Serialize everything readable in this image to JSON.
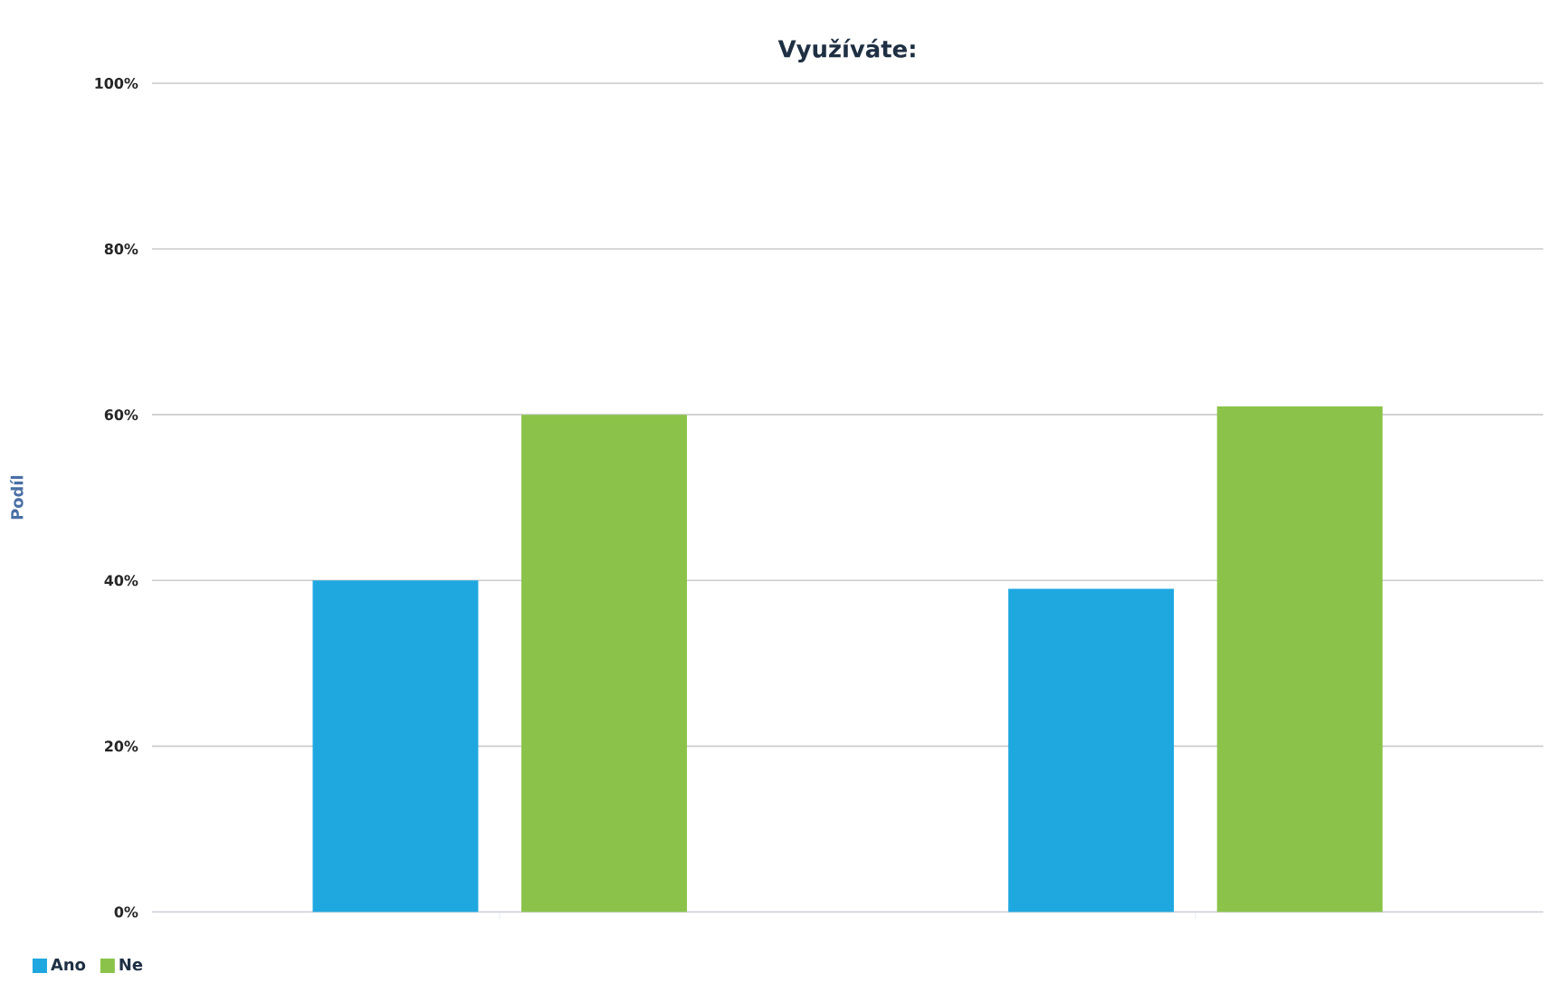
{
  "chart_data": {
    "type": "bar",
    "title": "Využíváte:",
    "ylabel": "Podíl",
    "categories": [
      null,
      null
    ],
    "series": [
      {
        "name": "Ano",
        "color": "#1fa8e0",
        "values": [
          40,
          39
        ]
      },
      {
        "name": "Ne",
        "color": "#8bc34a",
        "values": [
          60,
          61
        ]
      }
    ],
    "ylim": [
      0,
      100
    ],
    "yticks": [
      {
        "value": 0,
        "label": "0%"
      },
      {
        "value": 20,
        "label": "20%"
      },
      {
        "value": 40,
        "label": "40%"
      },
      {
        "value": 60,
        "label": "60%"
      },
      {
        "value": 80,
        "label": "80%"
      },
      {
        "value": 100,
        "label": "100%"
      }
    ],
    "grid": "y",
    "legend": "bottom left"
  }
}
